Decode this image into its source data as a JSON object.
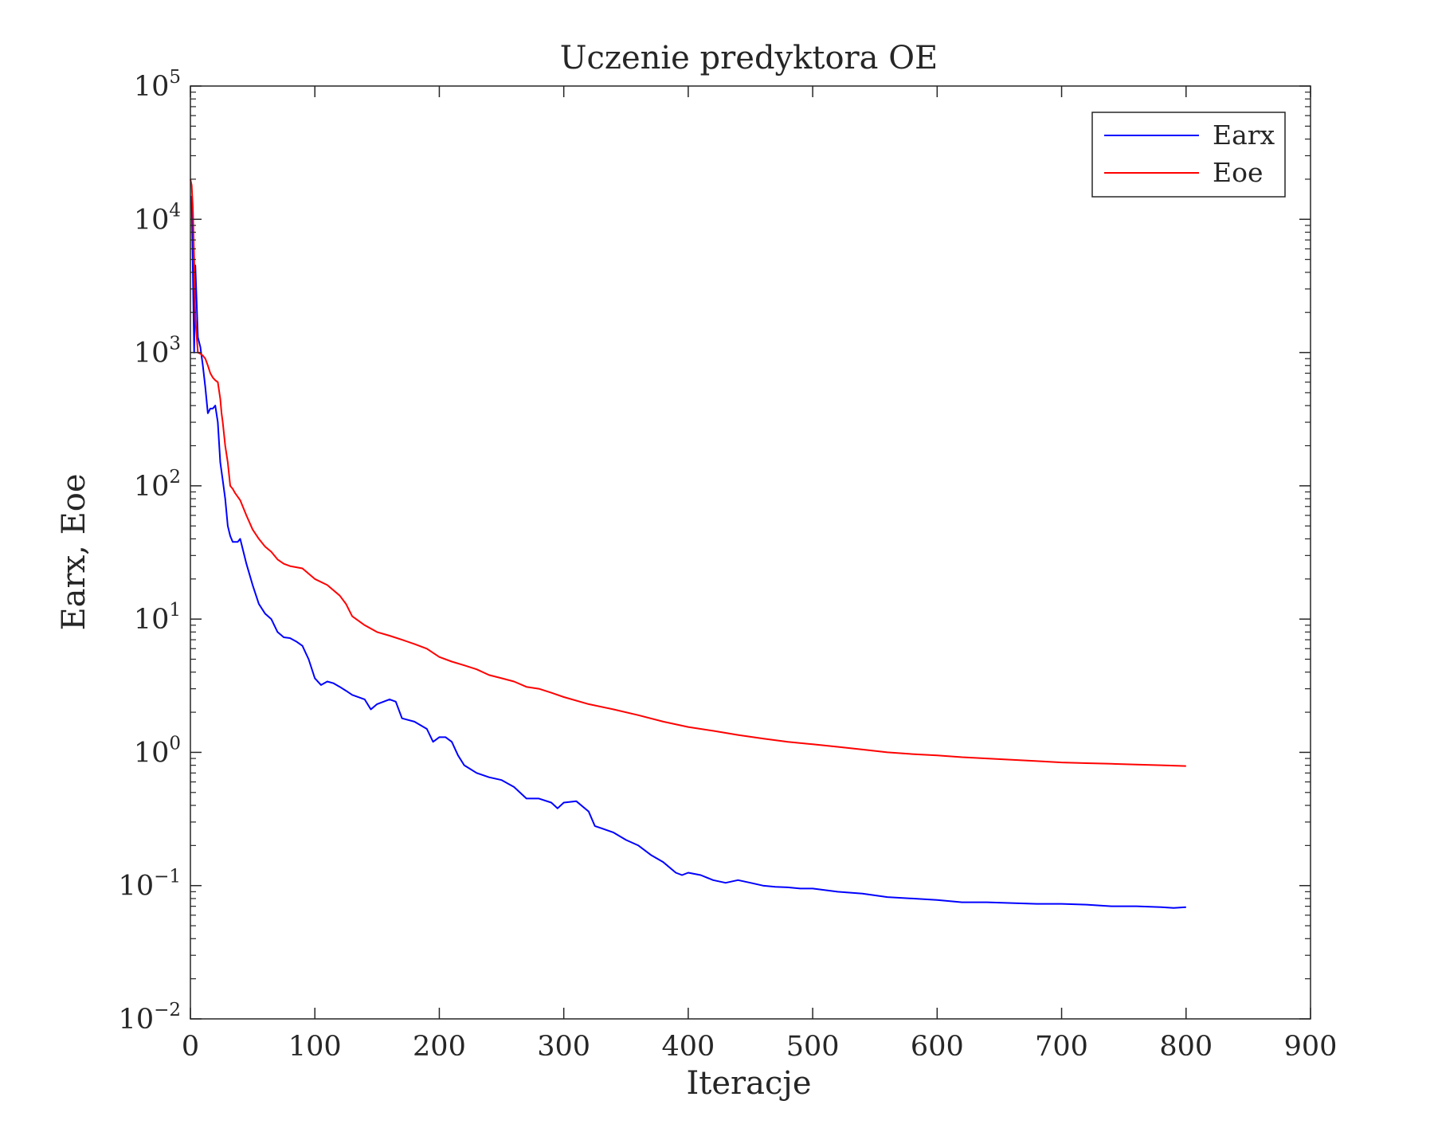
{
  "chart_data": {
    "type": "line",
    "title": "Uczenie predyktora OE",
    "xlabel": "Iteracje",
    "ylabel": "Earx, Eoe",
    "xlim": [
      0,
      900
    ],
    "ylim": [
      0.01,
      100000
    ],
    "yscale": "log",
    "x_ticks": [
      "0",
      "100",
      "200",
      "300",
      "400",
      "500",
      "600",
      "700",
      "800",
      "900"
    ],
    "y_ticks": [
      {
        "base": "10",
        "exp": "−2"
      },
      {
        "base": "10",
        "exp": "−1"
      },
      {
        "base": "10",
        "exp": "0"
      },
      {
        "base": "10",
        "exp": "1"
      },
      {
        "base": "10",
        "exp": "2"
      },
      {
        "base": "10",
        "exp": "3"
      },
      {
        "base": "10",
        "exp": "4"
      },
      {
        "base": "10",
        "exp": "5"
      }
    ],
    "grid": false,
    "legend_position": "top-right",
    "series": [
      {
        "name": "Earx",
        "color": "#0000ff",
        "x": [
          1,
          2,
          3,
          4,
          6,
          8,
          10,
          12,
          14,
          16,
          18,
          20,
          22,
          24,
          26,
          28,
          30,
          32,
          34,
          36,
          38,
          40,
          45,
          50,
          55,
          60,
          65,
          70,
          75,
          80,
          85,
          90,
          95,
          100,
          105,
          110,
          115,
          120,
          125,
          130,
          140,
          145,
          150,
          160,
          165,
          170,
          180,
          190,
          195,
          200,
          205,
          210,
          215,
          220,
          230,
          240,
          250,
          260,
          270,
          275,
          280,
          290,
          295,
          300,
          310,
          320,
          325,
          330,
          340,
          350,
          360,
          370,
          380,
          390,
          395,
          400,
          410,
          420,
          430,
          440,
          450,
          460,
          470,
          480,
          490,
          500,
          520,
          540,
          560,
          580,
          600,
          620,
          640,
          660,
          680,
          700,
          720,
          740,
          760,
          780,
          790,
          800
        ],
        "y": [
          15000,
          4000,
          1000,
          4500,
          1300,
          1100,
          800,
          550,
          350,
          380,
          380,
          400,
          300,
          150,
          110,
          80,
          50,
          42,
          38,
          38,
          38,
          40,
          26,
          18,
          13,
          11,
          10,
          8,
          7.3,
          7.2,
          6.8,
          6.3,
          5,
          3.6,
          3.2,
          3.4,
          3.3,
          3.1,
          2.9,
          2.7,
          2.5,
          2.1,
          2.3,
          2.5,
          2.4,
          1.8,
          1.7,
          1.5,
          1.2,
          1.3,
          1.3,
          1.2,
          0.95,
          0.8,
          0.7,
          0.65,
          0.62,
          0.55,
          0.45,
          0.45,
          0.45,
          0.42,
          0.38,
          0.42,
          0.43,
          0.36,
          0.28,
          0.27,
          0.25,
          0.22,
          0.2,
          0.17,
          0.15,
          0.125,
          0.12,
          0.125,
          0.12,
          0.11,
          0.105,
          0.11,
          0.105,
          0.1,
          0.098,
          0.097,
          0.095,
          0.095,
          0.09,
          0.087,
          0.082,
          0.08,
          0.078,
          0.075,
          0.075,
          0.074,
          0.073,
          0.073,
          0.072,
          0.07,
          0.07,
          0.069,
          0.068,
          0.069
        ]
      },
      {
        "name": "Eoe",
        "color": "#ff0000",
        "x": [
          0,
          1,
          2,
          3,
          4,
          6,
          8,
          10,
          12,
          14,
          16,
          18,
          20,
          22,
          24,
          25,
          26,
          28,
          30,
          32,
          34,
          36,
          40,
          45,
          50,
          55,
          60,
          65,
          70,
          75,
          80,
          90,
          100,
          110,
          120,
          125,
          130,
          140,
          150,
          160,
          170,
          180,
          190,
          200,
          210,
          220,
          230,
          240,
          250,
          260,
          270,
          280,
          290,
          300,
          320,
          340,
          360,
          380,
          400,
          420,
          440,
          460,
          480,
          500,
          520,
          540,
          560,
          580,
          600,
          620,
          640,
          660,
          680,
          700,
          720,
          740,
          760,
          780,
          800
        ],
        "y": [
          20000,
          18000,
          12000,
          5000,
          1800,
          1000,
          980,
          950,
          900,
          800,
          700,
          650,
          620,
          600,
          450,
          350,
          300,
          200,
          150,
          100,
          95,
          88,
          78,
          60,
          47,
          40,
          35,
          32,
          28,
          26,
          25,
          24,
          20,
          18,
          15,
          13,
          10.5,
          9,
          8,
          7.5,
          7,
          6.5,
          6,
          5.2,
          4.8,
          4.5,
          4.2,
          3.8,
          3.6,
          3.4,
          3.1,
          3,
          2.8,
          2.6,
          2.3,
          2.1,
          1.9,
          1.7,
          1.55,
          1.45,
          1.35,
          1.27,
          1.2,
          1.15,
          1.1,
          1.05,
          1.0,
          0.97,
          0.95,
          0.92,
          0.9,
          0.88,
          0.86,
          0.84,
          0.83,
          0.82,
          0.81,
          0.8,
          0.79
        ]
      }
    ]
  }
}
